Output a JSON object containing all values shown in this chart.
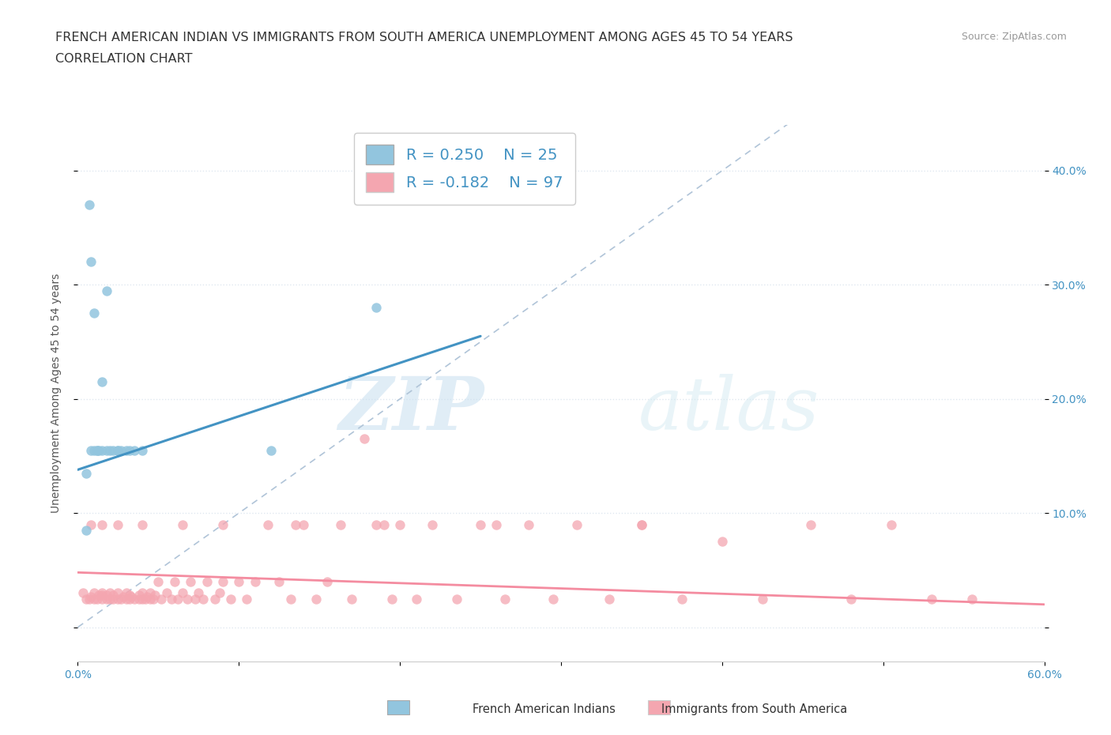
{
  "title_line1": "FRENCH AMERICAN INDIAN VS IMMIGRANTS FROM SOUTH AMERICA UNEMPLOYMENT AMONG AGES 45 TO 54 YEARS",
  "title_line2": "CORRELATION CHART",
  "source_text": "Source: ZipAtlas.com",
  "ylabel": "Unemployment Among Ages 45 to 54 years",
  "xlim": [
    0.0,
    0.6
  ],
  "ylim": [
    -0.03,
    0.44
  ],
  "blue_color": "#92c5de",
  "blue_line_color": "#4393c3",
  "pink_color": "#f4a6b0",
  "pink_line_color": "#f48ca0",
  "diagonal_color": "#b0c4d8",
  "R_blue": 0.25,
  "N_blue": 25,
  "R_pink": -0.182,
  "N_pink": 97,
  "watermark_zip": "ZIP",
  "watermark_atlas": "atlas",
  "bg_color": "#ffffff",
  "grid_color": "#e0e8f0",
  "title_fontsize": 11.5,
  "label_fontsize": 10,
  "tick_fontsize": 10,
  "legend_fontsize": 14,
  "blue_scatter_x": [
    0.005,
    0.007,
    0.008,
    0.01,
    0.012,
    0.013,
    0.015,
    0.015,
    0.018,
    0.02,
    0.022,
    0.025,
    0.027,
    0.03,
    0.032,
    0.035,
    0.04,
    0.005,
    0.008,
    0.01,
    0.012,
    0.018,
    0.025,
    0.12,
    0.185
  ],
  "blue_scatter_y": [
    0.135,
    0.37,
    0.32,
    0.275,
    0.155,
    0.155,
    0.155,
    0.215,
    0.155,
    0.155,
    0.155,
    0.155,
    0.155,
    0.155,
    0.155,
    0.155,
    0.155,
    0.085,
    0.155,
    0.155,
    0.155,
    0.295,
    0.155,
    0.155,
    0.28
  ],
  "pink_scatter_x": [
    0.003,
    0.005,
    0.007,
    0.008,
    0.01,
    0.01,
    0.012,
    0.013,
    0.015,
    0.015,
    0.015,
    0.018,
    0.018,
    0.02,
    0.02,
    0.022,
    0.022,
    0.025,
    0.025,
    0.027,
    0.028,
    0.03,
    0.03,
    0.032,
    0.032,
    0.033,
    0.035,
    0.038,
    0.038,
    0.04,
    0.04,
    0.042,
    0.043,
    0.045,
    0.045,
    0.047,
    0.048,
    0.05,
    0.052,
    0.055,
    0.058,
    0.06,
    0.062,
    0.065,
    0.068,
    0.07,
    0.073,
    0.075,
    0.078,
    0.08,
    0.085,
    0.088,
    0.09,
    0.095,
    0.1,
    0.105,
    0.11,
    0.118,
    0.125,
    0.132,
    0.14,
    0.148,
    0.155,
    0.163,
    0.17,
    0.178,
    0.185,
    0.195,
    0.2,
    0.21,
    0.22,
    0.235,
    0.25,
    0.265,
    0.28,
    0.295,
    0.31,
    0.33,
    0.35,
    0.375,
    0.4,
    0.425,
    0.455,
    0.48,
    0.505,
    0.53,
    0.555,
    0.008,
    0.015,
    0.025,
    0.04,
    0.065,
    0.09,
    0.135,
    0.19,
    0.26,
    0.35
  ],
  "pink_scatter_y": [
    0.03,
    0.025,
    0.025,
    0.027,
    0.025,
    0.03,
    0.025,
    0.028,
    0.025,
    0.03,
    0.028,
    0.025,
    0.028,
    0.025,
    0.03,
    0.025,
    0.028,
    0.025,
    0.03,
    0.025,
    0.027,
    0.025,
    0.03,
    0.025,
    0.028,
    0.027,
    0.025,
    0.025,
    0.028,
    0.025,
    0.03,
    0.025,
    0.027,
    0.025,
    0.03,
    0.025,
    0.028,
    0.04,
    0.025,
    0.03,
    0.025,
    0.04,
    0.025,
    0.03,
    0.025,
    0.04,
    0.025,
    0.03,
    0.025,
    0.04,
    0.025,
    0.03,
    0.04,
    0.025,
    0.04,
    0.025,
    0.04,
    0.09,
    0.04,
    0.025,
    0.09,
    0.025,
    0.04,
    0.09,
    0.025,
    0.165,
    0.09,
    0.025,
    0.09,
    0.025,
    0.09,
    0.025,
    0.09,
    0.025,
    0.09,
    0.025,
    0.09,
    0.025,
    0.09,
    0.025,
    0.075,
    0.025,
    0.09,
    0.025,
    0.09,
    0.025,
    0.025,
    0.09,
    0.09,
    0.09,
    0.09,
    0.09,
    0.09,
    0.09,
    0.09,
    0.09,
    0.09
  ],
  "blue_line_x0": 0.0,
  "blue_line_x1": 0.25,
  "blue_line_y0": 0.138,
  "blue_line_y1": 0.255,
  "pink_line_x0": 0.0,
  "pink_line_x1": 0.6,
  "pink_line_y0": 0.048,
  "pink_line_y1": 0.02
}
